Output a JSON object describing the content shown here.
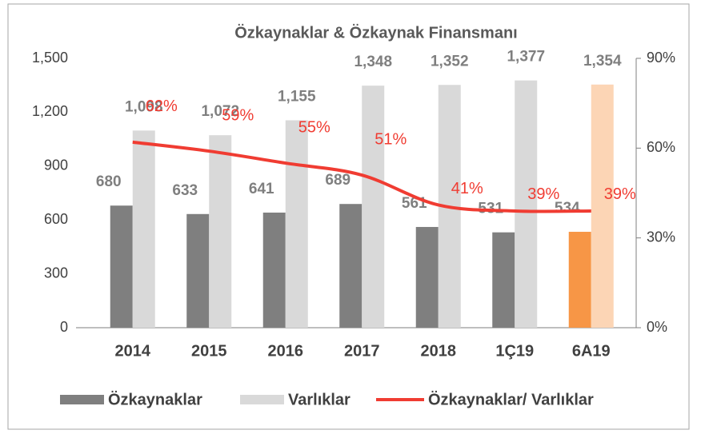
{
  "chart_data": {
    "type": "bar",
    "title": "Özkaynaklar & Özkaynak Finansmanı",
    "categories": [
      "2014",
      "2015",
      "2016",
      "2017",
      "2018",
      "1Ç19",
      "6A19"
    ],
    "series": [
      {
        "name": "Özkaynaklar",
        "color": "#7f7f7f",
        "colors": [
          "#7f7f7f",
          "#7f7f7f",
          "#7f7f7f",
          "#7f7f7f",
          "#7f7f7f",
          "#7f7f7f",
          "#f79646"
        ],
        "values": [
          680,
          633,
          641,
          689,
          561,
          531,
          534
        ],
        "value_labels": [
          "680",
          "633",
          "641",
          "689",
          "561",
          "531",
          "534"
        ]
      },
      {
        "name": "Varlıklar",
        "color": "#d9d9d9",
        "colors": [
          "#d9d9d9",
          "#d9d9d9",
          "#d9d9d9",
          "#d9d9d9",
          "#d9d9d9",
          "#d9d9d9",
          "#fcd5b5"
        ],
        "values": [
          1098,
          1072,
          1155,
          1348,
          1352,
          1377,
          1354
        ],
        "value_labels": [
          "1,098",
          "1,072",
          "1,155",
          "1,348",
          "1,352",
          "1,377",
          "1,354"
        ]
      },
      {
        "name": "Özkaynaklar/ Varlıklar",
        "type": "line",
        "axis": "y2",
        "color": "#f03c32",
        "values": [
          62,
          59,
          55,
          51,
          41,
          39,
          39
        ],
        "value_labels": [
          "62%",
          "59%",
          "55%",
          "51%",
          "41%",
          "39%",
          "39%"
        ]
      }
    ],
    "ylim": [
      0,
      1500
    ],
    "yticks": [
      0,
      300,
      600,
      900,
      {
        "value": 1200,
        "label": "1,200"
      },
      {
        "value": 1500,
        "label": "1,500"
      }
    ],
    "y2lim": [
      0,
      90
    ],
    "y2ticks": [
      {
        "value": 0,
        "label": "0%"
      },
      {
        "value": 30,
        "label": "30%"
      },
      {
        "value": 60,
        "label": "60%"
      },
      {
        "value": 90,
        "label": "90%"
      }
    ],
    "legend": "bottom"
  }
}
